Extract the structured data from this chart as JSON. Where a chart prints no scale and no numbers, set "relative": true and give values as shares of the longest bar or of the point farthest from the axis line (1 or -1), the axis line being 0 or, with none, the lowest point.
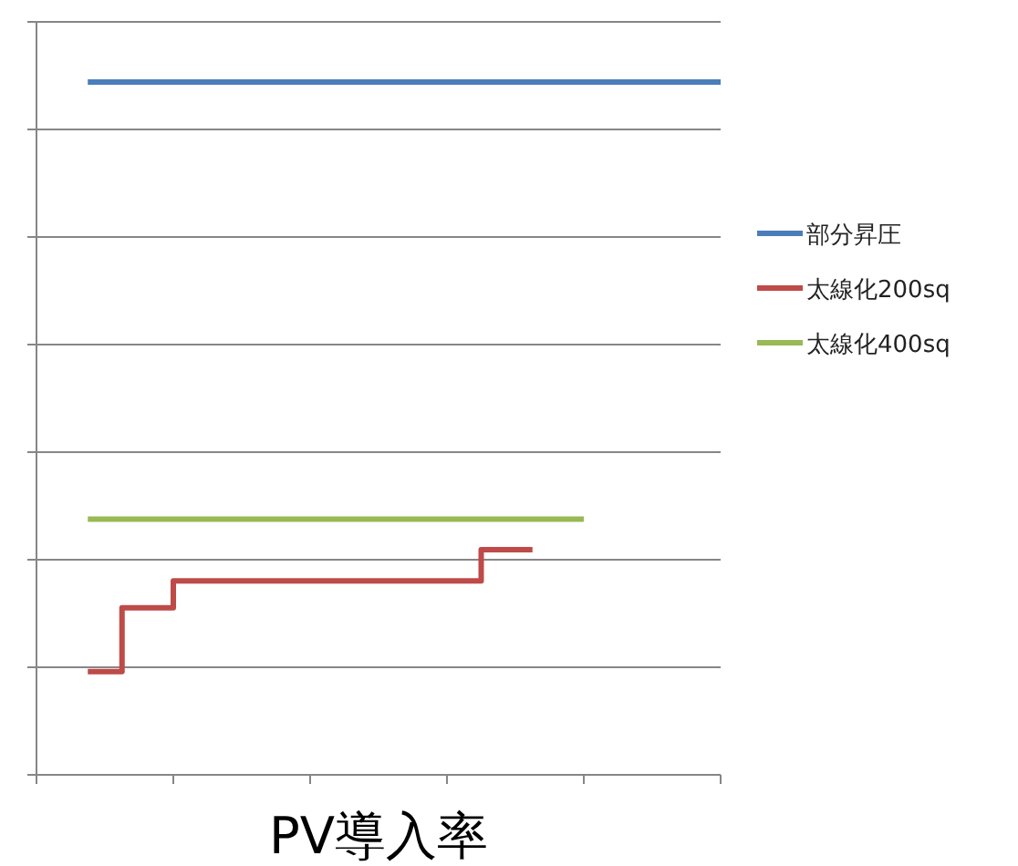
{
  "chart_data": {
    "type": "step",
    "relative": true,
    "xlabel": "PV導入率",
    "grid": "y",
    "legend": "right",
    "marker": "none",
    "line_style": "solid",
    "categories": [
      null,
      null,
      null,
      null,
      null,
      null,
      null,
      null,
      null,
      null,
      null,
      null,
      null,
      null,
      null,
      null,
      null,
      null,
      null,
      null,
      null,
      null,
      null,
      null,
      null,
      null,
      null,
      null,
      null,
      null,
      null,
      null,
      null,
      null,
      null,
      null,
      null,
      null,
      null,
      null,
      null
    ],
    "series": [
      {
        "name": "部分昇圧",
        "color": "#4a7ebb",
        "values": [
          null,
          null,
          null,
          1,
          1,
          1,
          1,
          1,
          1,
          1,
          1,
          1,
          1,
          1,
          1,
          1,
          1,
          1,
          1,
          1,
          1,
          1,
          1,
          1,
          1,
          1,
          1,
          1,
          1,
          1,
          1,
          1,
          1,
          1,
          1,
          1,
          1,
          1,
          1,
          1,
          1
        ]
      },
      {
        "name": "太線化200sq",
        "color": "#be4b48",
        "values": [
          null,
          null,
          null,
          0.149,
          0.149,
          0.241,
          0.241,
          0.241,
          0.28,
          0.28,
          0.28,
          0.28,
          0.28,
          0.28,
          0.28,
          0.28,
          0.28,
          0.28,
          0.28,
          0.28,
          0.28,
          0.28,
          0.28,
          0.28,
          0.28,
          0.28,
          0.325,
          0.325,
          0.325,
          0.325,
          null,
          null,
          null,
          null,
          null,
          null,
          null,
          null,
          null,
          null,
          null
        ]
      },
      {
        "name": "太線化400sq",
        "color": "#98b954",
        "values": [
          null,
          null,
          null,
          0.369,
          0.369,
          0.369,
          0.369,
          0.369,
          0.369,
          0.369,
          0.369,
          0.369,
          0.369,
          0.369,
          0.369,
          0.369,
          0.369,
          0.369,
          0.369,
          0.369,
          0.369,
          0.369,
          0.369,
          0.369,
          0.369,
          0.369,
          0.369,
          0.369,
          0.369,
          0.369,
          0.369,
          0.369,
          0.369,
          null,
          null,
          null,
          null,
          null,
          null,
          null,
          null
        ]
      }
    ]
  }
}
